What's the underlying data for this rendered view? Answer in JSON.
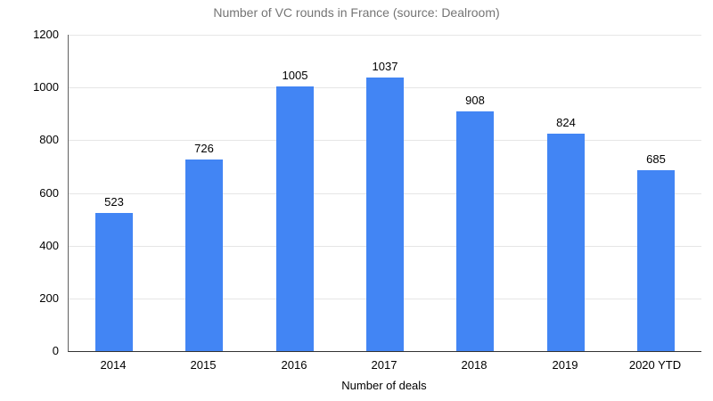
{
  "chart_data": {
    "type": "bar",
    "title": "Number of VC rounds in France (source: Dealroom)",
    "categories": [
      "2014",
      "2015",
      "2016",
      "2017",
      "2018",
      "2019",
      "2020 YTD"
    ],
    "values": [
      523,
      726,
      1005,
      1037,
      908,
      824,
      685
    ],
    "xlabel": "Number of deals",
    "ylabel": "",
    "ylim": [
      0,
      1200
    ],
    "yticks": [
      0,
      200,
      400,
      600,
      800,
      1000,
      1200
    ],
    "legend": "none",
    "grid": true,
    "colors": {
      "bar": "#4285f4",
      "title": "#757575",
      "tick_label": "#000000",
      "value_label": "#000000",
      "gridline": "#e6e6e6",
      "axis_line": "#616161",
      "baseline": "#333333",
      "background": "#ffffff"
    }
  }
}
